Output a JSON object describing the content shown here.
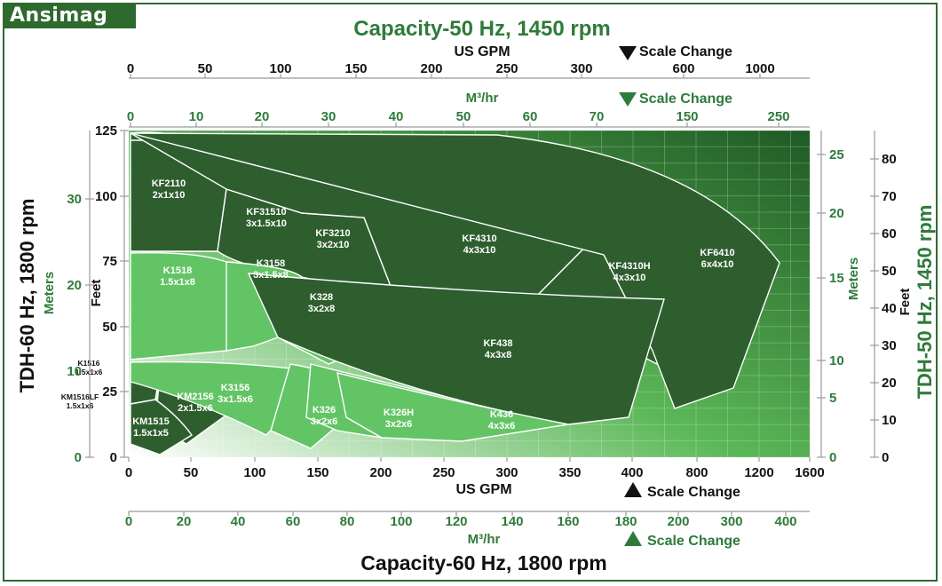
{
  "brand": {
    "logo_text": "Ansimag"
  },
  "colors": {
    "dark_green": "#2e5e2e",
    "mid_green": "#4f9a4a",
    "light_green": "#63c466",
    "accent_green": "#2e7b3a",
    "black": "#111111"
  },
  "chart_data": {
    "type": "area",
    "title_top": "Capacity-50 Hz, 1450 rpm",
    "title_bottom": "Capacity-60 Hz, 1800 rpm",
    "axes": {
      "x_bottom_gpm": {
        "label": "US GPM",
        "ticks": [
          "0",
          "50",
          "100",
          "150",
          "200",
          "250",
          "300",
          "350",
          "400",
          "800",
          "1200",
          "1600"
        ],
        "scale_change_label": "Scale Change"
      },
      "x_bottom_m3hr": {
        "label": "M³/hr",
        "ticks": [
          "0",
          "20",
          "40",
          "60",
          "80",
          "100",
          "120",
          "140",
          "160",
          "180",
          "200",
          "300",
          "400"
        ],
        "scale_change_label": "Scale Change"
      },
      "x_top_gpm": {
        "label": "US GPM",
        "ticks": [
          "0",
          "50",
          "100",
          "150",
          "200",
          "250",
          "300",
          "600",
          "1000"
        ],
        "scale_change_label": "Scale Change"
      },
      "x_top_m3hr": {
        "label": "M³/hr",
        "ticks": [
          "0",
          "10",
          "20",
          "30",
          "40",
          "50",
          "60",
          "70",
          "150",
          "250"
        ],
        "scale_change_label": "Scale Change"
      },
      "y_left_feet": {
        "label": "Feet",
        "ticks": [
          "0",
          "25",
          "50",
          "75",
          "100",
          "125"
        ],
        "ylim": [
          0,
          125
        ]
      },
      "y_left_meters": {
        "label": "Meters",
        "ticks": [
          "0",
          "10",
          "20",
          "30"
        ]
      },
      "y_left_title": "TDH-60 Hz, 1800 rpm",
      "y_right_meters": {
        "label": "Meters",
        "ticks": [
          "0",
          "5",
          "10",
          "15",
          "20",
          "25"
        ]
      },
      "y_right_feet": {
        "label": "Feet",
        "ticks": [
          "0",
          "10",
          "20",
          "30",
          "40",
          "50",
          "60",
          "70",
          "80"
        ]
      },
      "y_right_title": "TDH-50 Hz, 1450 rpm"
    },
    "series": [
      {
        "name": "KF2110",
        "size": "2x1x10",
        "shade": "dark"
      },
      {
        "name": "KF31510",
        "size": "3x1.5x10",
        "shade": "dark"
      },
      {
        "name": "KF3210",
        "size": "3x2x10",
        "shade": "dark"
      },
      {
        "name": "KF4310",
        "size": "4x3x10",
        "shade": "dark"
      },
      {
        "name": "KF4310H",
        "size": "4x3x10",
        "shade": "dark"
      },
      {
        "name": "KF6410",
        "size": "6x4x10",
        "shade": "dark"
      },
      {
        "name": "K1518",
        "size": "1.5x1x8",
        "shade": "light"
      },
      {
        "name": "K3158",
        "size": "3x1.5x8",
        "shade": "light"
      },
      {
        "name": "K328",
        "size": "3x2x8",
        "shade": "light"
      },
      {
        "name": "KF438",
        "size": "4x3x8",
        "shade": "dark"
      },
      {
        "name": "K1516",
        "size": "1.5x1x6",
        "shade": "light"
      },
      {
        "name": "KM1516LF",
        "size": "1.5x1x6",
        "shade": "dark"
      },
      {
        "name": "KM2156",
        "size": "2x1.5x6",
        "shade": "dark"
      },
      {
        "name": "KM1515",
        "size": "1.5x1x5",
        "shade": "dark"
      },
      {
        "name": "K3156",
        "size": "3x1.5x6",
        "shade": "light"
      },
      {
        "name": "K326",
        "size": "3x2x6",
        "shade": "light"
      },
      {
        "name": "K326H",
        "size": "3x2x6",
        "shade": "light"
      },
      {
        "name": "K436",
        "size": "4x3x6",
        "shade": "light"
      }
    ],
    "grid": true
  }
}
